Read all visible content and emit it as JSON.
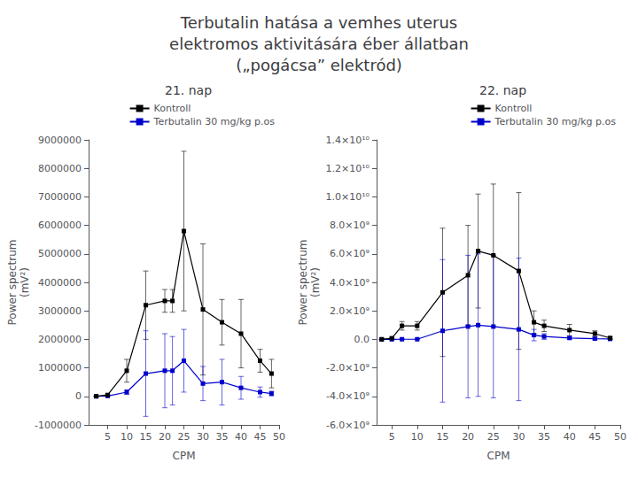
{
  "title": "Terbutalin hatása a vemhes uterus\nelektromos aktivitására éber állatban\n(„pogácsa” elektród)",
  "chart_data": [
    {
      "type": "line",
      "title": "21. nap",
      "xlabel": "CPM",
      "ylabel": "Power spectrum\n(mV²)",
      "x": [
        2,
        5,
        10,
        15,
        20,
        22,
        25,
        30,
        35,
        40,
        45,
        48
      ],
      "series": [
        {
          "name": "Kontroll",
          "color": "#000000",
          "values": [
            5000,
            50000,
            900000,
            3200000,
            3350000,
            3350000,
            5800000,
            3050000,
            2600000,
            2200000,
            1250000,
            800000
          ],
          "errors": [
            3000,
            30000,
            400000,
            1200000,
            400000,
            400000,
            2800000,
            2300000,
            800000,
            1200000,
            400000,
            500000
          ]
        },
        {
          "name": "Terbutalin 30 mg/kg p.os",
          "color": "#0000cc",
          "values": [
            2000,
            15000,
            150000,
            800000,
            900000,
            900000,
            1250000,
            450000,
            500000,
            300000,
            150000,
            100000
          ],
          "errors": [
            1000,
            8000,
            80000,
            1500000,
            1300000,
            1200000,
            1100000,
            600000,
            800000,
            400000,
            180000,
            80000
          ]
        }
      ],
      "xlim": [
        0,
        50
      ],
      "xticks": [
        5,
        10,
        15,
        20,
        25,
        30,
        35,
        40,
        45,
        50
      ],
      "ylim": [
        -1000000,
        9000000
      ],
      "yticks": [
        -1000000,
        0,
        1000000,
        2000000,
        3000000,
        4000000,
        5000000,
        6000000,
        7000000,
        8000000,
        9000000
      ],
      "grid": false,
      "legend": "upper right",
      "marker": "square"
    },
    {
      "type": "line",
      "title": "22. nap",
      "xlabel": "CPM",
      "ylabel": "Power spectrum\n(mV²)",
      "x": [
        3,
        5,
        7,
        10,
        15,
        20,
        22,
        25,
        30,
        33,
        35,
        40,
        45,
        48
      ],
      "series": [
        {
          "name": "Kontroll",
          "color": "#000000",
          "values": [
            5000000.0,
            80000000.0,
            950000000.0,
            950000000.0,
            3300000000.0,
            4500000000.0,
            6200000000.0,
            5900000000.0,
            4800000000.0,
            1200000000.0,
            950000000.0,
            650000000.0,
            400000000.0,
            100000000.0
          ],
          "errors": [
            10000000.0,
            50000000.0,
            300000000.0,
            300000000.0,
            4500000000.0,
            3500000000.0,
            4000000000.0,
            5000000000.0,
            5500000000.0,
            800000000.0,
            400000000.0,
            400000000.0,
            200000000.0,
            80000000.0
          ]
        },
        {
          "name": "Terbutalin 30 mg/kg p.os",
          "color": "#0000cc",
          "values": [
            1000000.0,
            5000000.0,
            10000000.0,
            10000000.0,
            600000000.0,
            900000000.0,
            1000000000.0,
            900000000.0,
            700000000.0,
            300000000.0,
            200000000.0,
            100000000.0,
            50000000.0,
            30000000.0
          ],
          "errors": [
            500000.0,
            2000000.0,
            5000000.0,
            5000000.0,
            5000000000.0,
            5000000000.0,
            5000000000.0,
            5000000000.0,
            5000000000.0,
            400000000.0,
            200000000.0,
            100000000.0,
            80000000.0,
            40000000.0
          ]
        }
      ],
      "xlim": [
        2,
        50
      ],
      "xticks": [
        5,
        10,
        15,
        20,
        25,
        30,
        35,
        40,
        45,
        50
      ],
      "ylim": [
        -6000000000,
        14000000000
      ],
      "yticks": [
        {
          "value": -6000000000,
          "label": "-6.0×10⁹"
        },
        {
          "value": -4000000000,
          "label": "-4.0×10⁹"
        },
        {
          "value": -2000000000,
          "label": "-2.0×10⁹"
        },
        {
          "value": 0,
          "label": "0.0"
        },
        {
          "value": 2000000000,
          "label": "2.0×10⁹"
        },
        {
          "value": 4000000000,
          "label": "4.0×10⁹"
        },
        {
          "value": 6000000000,
          "label": "6.0×10⁹"
        },
        {
          "value": 8000000000,
          "label": "8.0×10⁹"
        },
        {
          "value": 10000000000,
          "label": "1.0×10¹⁰"
        },
        {
          "value": 12000000000,
          "label": "1.2×10¹⁰"
        },
        {
          "value": 14000000000,
          "label": "1.4×10¹⁰"
        }
      ],
      "grid": false,
      "legend": "upper right",
      "marker": "square"
    }
  ]
}
